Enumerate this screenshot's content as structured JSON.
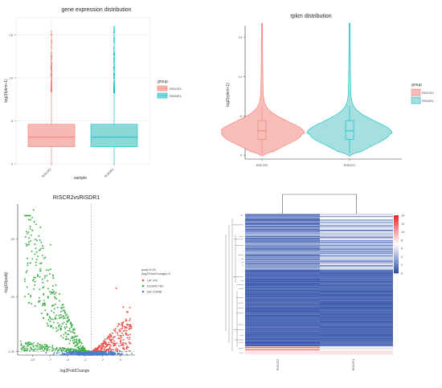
{
  "chart_data": [
    {
      "id": "gene_expression",
      "type": "box",
      "title": "gene expression distribution",
      "xlabel": "sample",
      "ylabel": "log2(fpkm+1)",
      "categories": [
        "RISCR2",
        "RISDR1"
      ],
      "ylim": [
        0,
        17
      ],
      "yticks": [
        0,
        5,
        10,
        15
      ],
      "boxes": [
        {
          "name": "RISCR2",
          "min": 0,
          "q1": 2.0,
          "median": 3.1,
          "q3": 4.6,
          "max": 8.4,
          "outlier_max": 15.5,
          "color": "#F8766D",
          "fill": "#F7B9B4"
        },
        {
          "name": "RISDR1",
          "min": 0,
          "q1": 2.0,
          "median": 3.1,
          "q3": 4.6,
          "max": 8.3,
          "outlier_max": 16.0,
          "color": "#00BFC4",
          "fill": "#8FD8DA"
        }
      ],
      "legend": {
        "title": "group",
        "items": [
          "RISCR2",
          "RISDR1"
        ],
        "placement": "right"
      }
    },
    {
      "id": "rpkm",
      "type": "violin",
      "title": "rpkm distribution",
      "xlabel": "",
      "ylabel": "log2(rpkm+1)",
      "categories": [
        "RISCR2",
        "RISDR1"
      ],
      "ylim": [
        -0.5,
        16.5
      ],
      "yticks": [
        0,
        5,
        10,
        15
      ],
      "boxes": [
        {
          "name": "RISCR2",
          "q1": 2.0,
          "median": 3.1,
          "q3": 4.4,
          "whisker_lo": 0.2,
          "whisker_hi": 6.3,
          "min": 0,
          "max": 16.8,
          "color": "#F8766D",
          "fill": "#F7BDB8"
        },
        {
          "name": "RISDR1",
          "q1": 2.0,
          "median": 3.1,
          "q3": 4.4,
          "whisker_lo": 0.2,
          "whisker_hi": 6.3,
          "min": 0,
          "max": 16.8,
          "color": "#00BFC4",
          "fill": "#A6DFE0"
        }
      ],
      "legend": {
        "title": "group",
        "items": [
          "RISCR2",
          "RISDR1"
        ],
        "placement": "right"
      }
    },
    {
      "id": "volcano",
      "type": "scatter",
      "title": "RISCR2vsRISDR1",
      "xlabel": "log2FoldChange",
      "ylabel": "-log10(padj)",
      "xlim": [
        -12.5,
        7.5
      ],
      "ylim": [
        0,
        52
      ],
      "xticks": [
        -10,
        -7,
        -4,
        -1,
        2,
        5
      ],
      "yticks_labels": [
        "1.30",
        "20",
        "40"
      ],
      "threshold_y": 1.3,
      "threshold_x": 0,
      "legend": {
        "title": "padj<0.05\n|log2FoldChange|>0",
        "items": [
          {
            "label": "UP 472",
            "color": "#E8524A"
          },
          {
            "label": "DOWN 760",
            "color": "#3FAE49"
          },
          {
            "label": "NO 23458",
            "color": "#4A7CC9"
          }
        ],
        "placement": "right"
      },
      "series": [
        {
          "name": "UP",
          "count": 472,
          "color": "#E8524A"
        },
        {
          "name": "DOWN",
          "count": 760,
          "color": "#3FAE49"
        },
        {
          "name": "NO",
          "count": 23458,
          "color": "#4A7CC9"
        }
      ]
    },
    {
      "id": "heatmap",
      "type": "heatmap",
      "columns": [
        "RISCR2",
        "RISDR1"
      ],
      "scale": {
        "min": 0,
        "max": 14,
        "ticks": [
          0,
          2,
          4,
          6,
          8,
          10,
          12,
          14
        ],
        "low": "#2E4FA8",
        "mid": "#FFFFFF",
        "high": "#E8252A"
      }
    }
  ]
}
